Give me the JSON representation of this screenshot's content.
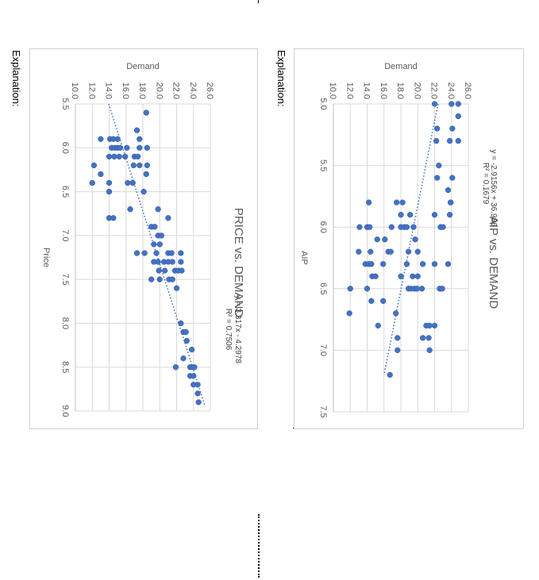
{
  "page": {
    "explanation_label": "Explanation:"
  },
  "chart_data": [
    {
      "type": "scatter",
      "title": "AIP vs. DEMAND",
      "xlabel": "AIP",
      "ylabel": "Demand",
      "xlim": [
        5.0,
        7.5
      ],
      "ylim": [
        10.0,
        26.0
      ],
      "xticks": [
        "5.0",
        "5.5",
        "6.0",
        "6.5",
        "7.0",
        "7.5"
      ],
      "yticks": [
        "10.0",
        "12.0",
        "14.0",
        "16.0",
        "18.0",
        "20.0",
        "22.0",
        "24.0",
        "26.0"
      ],
      "grid": true,
      "trendline": {
        "type": "linear",
        "slope": -2.9156,
        "intercept": 36.986,
        "x_range": [
          5.0,
          7.2
        ]
      },
      "equation_label": "y = -2.9156x + 36.986",
      "r2_label": "R² = 0.1679",
      "points": [
        [
          5.0,
          22.0
        ],
        [
          5.0,
          24.0
        ],
        [
          5.0,
          24.8
        ],
        [
          5.1,
          24.8
        ],
        [
          5.2,
          22.3
        ],
        [
          5.2,
          24.1
        ],
        [
          5.3,
          22.2
        ],
        [
          5.3,
          23.8
        ],
        [
          5.3,
          24.8
        ],
        [
          5.5,
          22.5
        ],
        [
          5.6,
          22.3
        ],
        [
          5.6,
          24.1
        ],
        [
          5.7,
          23.6
        ],
        [
          5.8,
          14.2
        ],
        [
          5.8,
          17.5
        ],
        [
          5.8,
          18.2
        ],
        [
          5.8,
          23.9
        ],
        [
          5.8,
          23.9
        ],
        [
          5.9,
          18.0
        ],
        [
          5.9,
          19.1
        ],
        [
          5.9,
          22.0
        ],
        [
          5.9,
          23.8
        ],
        [
          6.0,
          13.1
        ],
        [
          6.0,
          14.0
        ],
        [
          6.0,
          14.3
        ],
        [
          6.0,
          16.9
        ],
        [
          6.0,
          18.0
        ],
        [
          6.0,
          18.4
        ],
        [
          6.0,
          18.7
        ],
        [
          6.0,
          19.5
        ],
        [
          6.0,
          22.7
        ],
        [
          6.0,
          23.0
        ],
        [
          6.1,
          15.2
        ],
        [
          6.1,
          16.1
        ],
        [
          6.1,
          19.7
        ],
        [
          6.2,
          13.0
        ],
        [
          6.2,
          14.4
        ],
        [
          6.2,
          16.5
        ],
        [
          6.2,
          16.8
        ],
        [
          6.2,
          18.9
        ],
        [
          6.2,
          20.0
        ],
        [
          6.3,
          13.8
        ],
        [
          6.3,
          14.2
        ],
        [
          6.3,
          14.5
        ],
        [
          6.3,
          15.9
        ],
        [
          6.3,
          18.7
        ],
        [
          6.3,
          20.6
        ],
        [
          6.3,
          22.0
        ],
        [
          6.3,
          23.6
        ],
        [
          6.4,
          14.6
        ],
        [
          6.4,
          15.0
        ],
        [
          6.4,
          18.0
        ],
        [
          6.4,
          19.4
        ],
        [
          6.4,
          20.0
        ],
        [
          6.5,
          12.0
        ],
        [
          6.5,
          14.0
        ],
        [
          6.5,
          18.9
        ],
        [
          6.5,
          19.2
        ],
        [
          6.5,
          19.6
        ],
        [
          6.5,
          19.9
        ],
        [
          6.5,
          20.5
        ],
        [
          6.5,
          22.6
        ],
        [
          6.5,
          22.9
        ],
        [
          6.6,
          14.5
        ],
        [
          6.6,
          15.9
        ],
        [
          6.7,
          11.9
        ],
        [
          6.7,
          17.4
        ],
        [
          6.8,
          15.3
        ],
        [
          6.8,
          21.0
        ],
        [
          6.8,
          21.4
        ],
        [
          6.8,
          22.0
        ],
        [
          6.9,
          17.6
        ],
        [
          6.9,
          20.6
        ],
        [
          6.9,
          21.3
        ],
        [
          7.0,
          17.6
        ],
        [
          7.0,
          21.4
        ],
        [
          7.2,
          16.7
        ]
      ]
    },
    {
      "type": "scatter",
      "title": "PRICE vs. DEMAND",
      "xlabel": "Price",
      "ylabel": "Demand",
      "xlim": [
        5.5,
        9.0
      ],
      "ylim": [
        10.0,
        26.0
      ],
      "xticks": [
        "5.5",
        "6.0",
        "6.5",
        "7.0",
        "7.5",
        "8.0",
        "8.5",
        "9.0"
      ],
      "yticks": [
        "10.0",
        "12.0",
        "14.0",
        "16.0",
        "18.0",
        "20.0",
        "22.0",
        "24.0",
        "26.0"
      ],
      "grid": true,
      "trendline": {
        "type": "linear",
        "slope": 3.317,
        "intercept": -4.2978,
        "x_range": [
          5.5,
          8.95
        ]
      },
      "equation_label": "y = 3.317x - 4.2978",
      "r2_label": "R² = 0.7506",
      "points": [
        [
          5.6,
          18.4
        ],
        [
          5.8,
          17.3
        ],
        [
          5.9,
          13.0
        ],
        [
          5.9,
          14.1
        ],
        [
          5.9,
          14.5
        ],
        [
          5.9,
          15.0
        ],
        [
          5.9,
          17.6
        ],
        [
          6.0,
          14.3
        ],
        [
          6.0,
          14.7
        ],
        [
          6.0,
          15.0
        ],
        [
          6.0,
          15.3
        ],
        [
          6.0,
          16.1
        ],
        [
          6.0,
          17.6
        ],
        [
          6.0,
          18.5
        ],
        [
          6.1,
          14.0
        ],
        [
          6.1,
          14.6
        ],
        [
          6.1,
          15.2
        ],
        [
          6.1,
          15.9
        ],
        [
          6.1,
          17.0
        ],
        [
          6.1,
          17.4
        ],
        [
          6.2,
          12.2
        ],
        [
          6.2,
          16.9
        ],
        [
          6.2,
          17.6
        ],
        [
          6.2,
          18.5
        ],
        [
          6.3,
          13.0
        ],
        [
          6.3,
          18.4
        ],
        [
          6.4,
          12.0
        ],
        [
          6.4,
          14.0
        ],
        [
          6.4,
          16.2
        ],
        [
          6.4,
          16.8
        ],
        [
          6.5,
          14.0
        ],
        [
          6.5,
          18.1
        ],
        [
          6.7,
          16.5
        ],
        [
          6.7,
          19.8
        ],
        [
          6.8,
          14.0
        ],
        [
          6.8,
          14.5
        ],
        [
          6.8,
          21.0
        ],
        [
          6.9,
          19.0
        ],
        [
          6.9,
          19.4
        ],
        [
          7.0,
          19.8
        ],
        [
          7.0,
          20.2
        ],
        [
          7.1,
          19.3
        ],
        [
          7.1,
          20.0
        ],
        [
          7.2,
          17.3
        ],
        [
          7.2,
          18.2
        ],
        [
          7.2,
          19.6
        ],
        [
          7.2,
          21.0
        ],
        [
          7.2,
          21.4
        ],
        [
          7.2,
          22.5
        ],
        [
          7.3,
          19.3
        ],
        [
          7.3,
          19.8
        ],
        [
          7.3,
          20.5
        ],
        [
          7.3,
          21.0
        ],
        [
          7.3,
          21.5
        ],
        [
          7.3,
          22.5
        ],
        [
          7.4,
          19.9
        ],
        [
          7.4,
          20.6
        ],
        [
          7.4,
          21.8
        ],
        [
          7.4,
          22.2
        ],
        [
          7.4,
          22.6
        ],
        [
          7.5,
          19.0
        ],
        [
          7.5,
          20.0
        ],
        [
          7.5,
          21.1
        ],
        [
          7.5,
          21.5
        ],
        [
          7.6,
          22.0
        ],
        [
          8.0,
          22.5
        ],
        [
          8.1,
          22.8
        ],
        [
          8.1,
          23.1
        ],
        [
          8.2,
          23.2
        ],
        [
          8.3,
          23.8
        ],
        [
          8.4,
          22.8
        ],
        [
          8.5,
          21.9
        ],
        [
          8.5,
          23.6
        ],
        [
          8.5,
          23.8
        ],
        [
          8.5,
          24.1
        ],
        [
          8.6,
          23.6
        ],
        [
          8.6,
          24.0
        ],
        [
          8.7,
          24.0
        ],
        [
          8.7,
          24.5
        ],
        [
          8.8,
          24.5
        ],
        [
          8.9,
          24.6
        ]
      ]
    }
  ]
}
